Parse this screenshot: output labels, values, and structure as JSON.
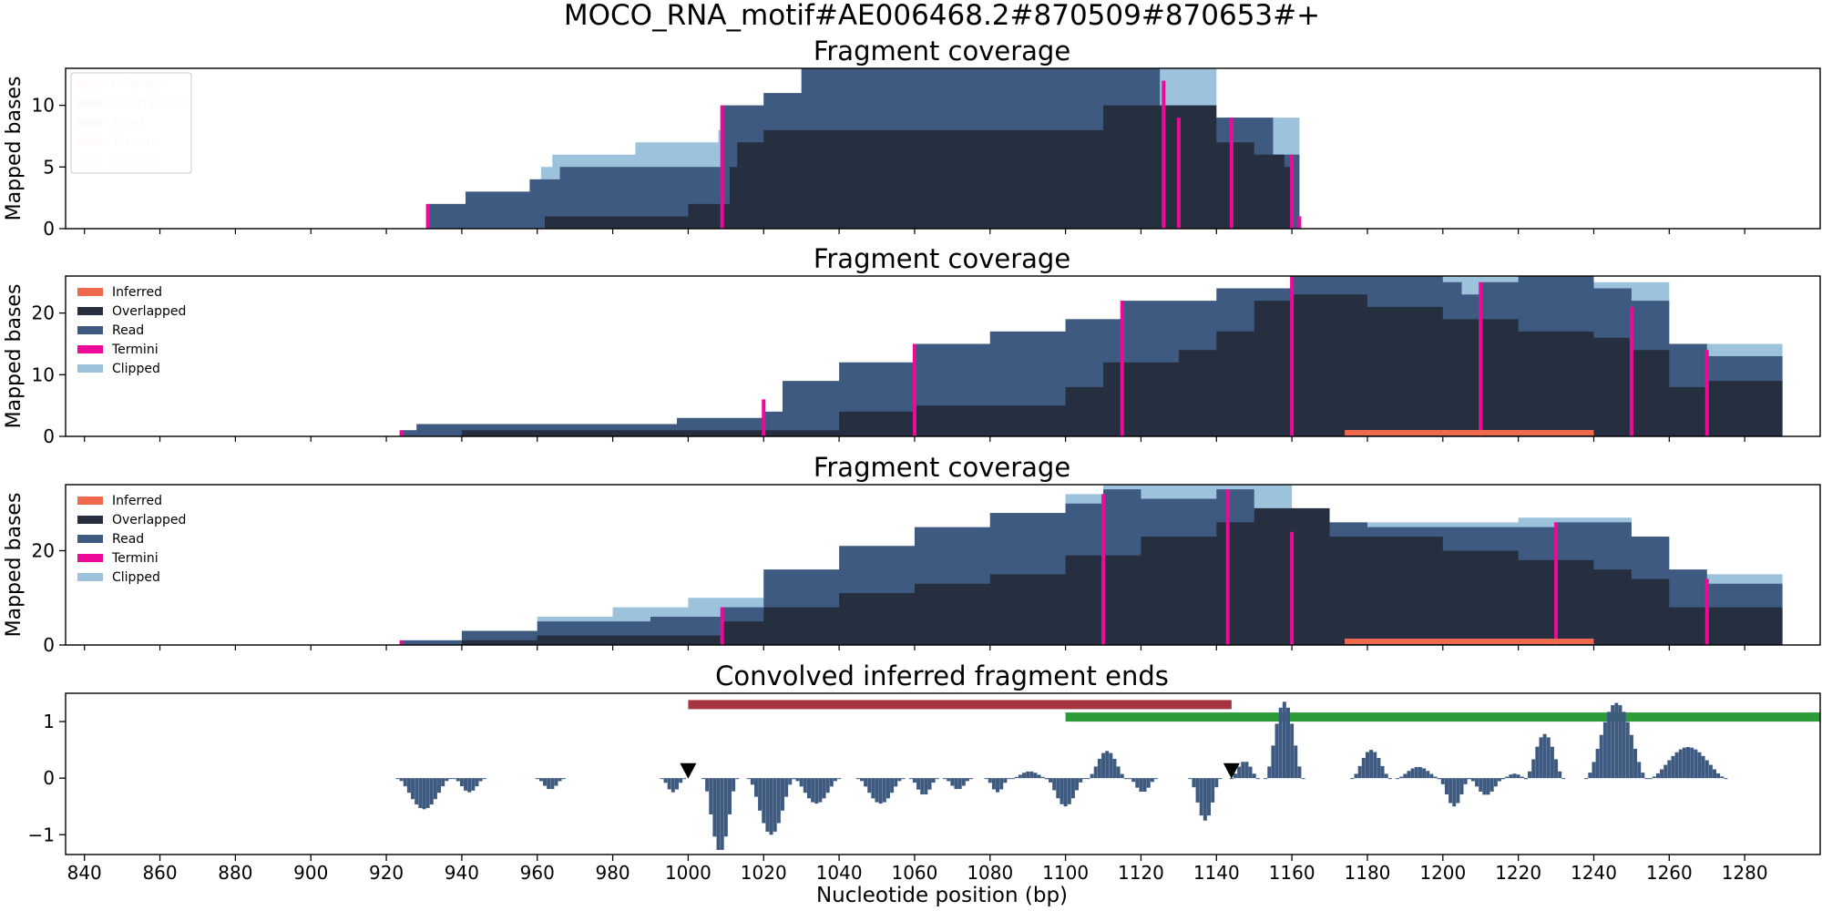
{
  "suptitle": "MOCO_RNA_motif#AE006468.2#870509#870653#+",
  "colors": {
    "inferred": "#ef6a4c",
    "overlapped": "#262f40",
    "read": "#3e5a80",
    "termini": "#ee0a98",
    "clipped": "#9cc2dc",
    "red_interval": "#a4343f",
    "green_interval": "#2e9b3a",
    "ends": "#3e5a80"
  },
  "chart_data": [
    {
      "type": "area",
      "title": "Fragment coverage",
      "ylabel": "Mapped bases",
      "xlim": [
        835,
        1300
      ],
      "ylim": [
        0,
        13
      ],
      "yticks": [
        0,
        5,
        10
      ],
      "legend": {
        "placement": "top-left",
        "entries": [
          "Inferred",
          "Overlapped",
          "Read",
          "Termini",
          "Clipped"
        ]
      },
      "series": [
        {
          "name": "Clipped",
          "x": [
            931,
            941,
            958,
            961,
            964,
            986,
            1008,
            1020,
            1080,
            1120,
            1140,
            1162
          ],
          "values": [
            2,
            3,
            4,
            5,
            6,
            7,
            8,
            11,
            13,
            13,
            9,
            0
          ]
        },
        {
          "name": "Read",
          "x": [
            931,
            941,
            958,
            961,
            966,
            986,
            1006,
            1009,
            1020,
            1030,
            1050,
            1100,
            1125,
            1144,
            1155,
            1162
          ],
          "values": [
            2,
            3,
            4,
            4,
            5,
            5,
            5,
            10,
            11,
            13,
            13,
            13,
            9,
            9,
            6,
            0
          ]
        },
        {
          "name": "Overlapped",
          "x": [
            931,
            958,
            962,
            1000,
            1009,
            1011,
            1013,
            1020,
            1100,
            1110,
            1140,
            1150,
            1158,
            1160
          ],
          "values": [
            0,
            0,
            1,
            2,
            2,
            5,
            7,
            8,
            8,
            10,
            7,
            6,
            5,
            0
          ]
        },
        {
          "name": "Termini",
          "x": [
            931,
            1009,
            1126,
            1130,
            1144,
            1160,
            1162
          ],
          "values": [
            2,
            10,
            12,
            9,
            9,
            6,
            1
          ]
        }
      ]
    },
    {
      "type": "area",
      "title": "Fragment coverage",
      "ylabel": "Mapped bases",
      "xlim": [
        835,
        1300
      ],
      "ylim": [
        0,
        26
      ],
      "yticks": [
        0,
        10,
        20
      ],
      "legend": {
        "placement": "top-left",
        "entries": [
          "Inferred",
          "Overlapped",
          "Read",
          "Termini",
          "Clipped"
        ]
      },
      "series": [
        {
          "name": "Clipped",
          "x": [
            924,
            1020,
            1060,
            1080,
            1100,
            1140,
            1160,
            1200,
            1240,
            1260,
            1290
          ],
          "values": [
            1,
            4,
            15,
            17,
            19,
            23,
            26,
            26,
            25,
            15,
            13
          ]
        },
        {
          "name": "Read",
          "x": [
            924,
            928,
            940,
            997,
            1020,
            1025,
            1040,
            1060,
            1080,
            1100,
            1115,
            1140,
            1160,
            1180,
            1200,
            1205,
            1210,
            1220,
            1240,
            1250,
            1260,
            1270,
            1290
          ],
          "values": [
            1,
            2,
            2,
            3,
            4,
            9,
            12,
            15,
            17,
            19,
            22,
            24,
            26,
            26,
            25,
            23,
            25,
            26,
            24,
            22,
            15,
            13,
            13
          ]
        },
        {
          "name": "Overlapped",
          "x": [
            924,
            940,
            1020,
            1040,
            1060,
            1080,
            1100,
            1110,
            1130,
            1140,
            1150,
            1160,
            1180,
            1200,
            1220,
            1240,
            1250,
            1260,
            1270,
            1290
          ],
          "values": [
            0,
            1,
            1,
            4,
            5,
            5,
            8,
            12,
            14,
            17,
            22,
            23,
            21,
            19,
            17,
            16,
            14,
            8,
            9,
            8
          ]
        },
        {
          "name": "Termini",
          "x": [
            924,
            1020,
            1060,
            1115,
            1160,
            1210,
            1250,
            1270
          ],
          "values": [
            1,
            6,
            15,
            22,
            26,
            25,
            21,
            14
          ]
        },
        {
          "name": "Inferred",
          "x": [
            1174,
            1240
          ],
          "values": [
            1,
            1
          ]
        }
      ]
    },
    {
      "type": "area",
      "title": "Fragment coverage",
      "ylabel": "Mapped bases",
      "xlim": [
        835,
        1300
      ],
      "ylim": [
        0,
        34
      ],
      "yticks": [
        0,
        20
      ],
      "legend": {
        "placement": "top-left",
        "entries": [
          "Inferred",
          "Overlapped",
          "Read",
          "Termini",
          "Clipped"
        ]
      },
      "series": [
        {
          "name": "Clipped",
          "x": [
            924,
            960,
            980,
            1000,
            1020,
            1060,
            1080,
            1100,
            1110,
            1140,
            1160,
            1220,
            1250,
            1260,
            1290
          ],
          "values": [
            1,
            6,
            8,
            10,
            15,
            22,
            28,
            32,
            34,
            34,
            26,
            27,
            23,
            15,
            13
          ]
        },
        {
          "name": "Read",
          "x": [
            924,
            940,
            960,
            990,
            1009,
            1020,
            1040,
            1060,
            1080,
            1100,
            1110,
            1120,
            1140,
            1150,
            1160,
            1180,
            1210,
            1230,
            1250,
            1260,
            1270,
            1290
          ],
          "values": [
            1,
            3,
            5,
            6,
            8,
            16,
            21,
            25,
            28,
            30,
            33,
            31,
            33,
            28,
            26,
            25,
            25,
            26,
            23,
            16,
            13,
            13
          ]
        },
        {
          "name": "Overlapped",
          "x": [
            924,
            940,
            960,
            1009,
            1020,
            1040,
            1060,
            1080,
            1100,
            1120,
            1140,
            1150,
            1170,
            1200,
            1220,
            1240,
            1250,
            1260,
            1290
          ],
          "values": [
            0,
            1,
            2,
            5,
            8,
            11,
            13,
            15,
            19,
            23,
            26,
            29,
            23,
            20,
            18,
            16,
            14,
            8,
            8
          ]
        },
        {
          "name": "Termini",
          "x": [
            924,
            1009,
            1110,
            1143,
            1160,
            1230,
            1270
          ],
          "values": [
            1,
            8,
            32,
            33,
            24,
            26,
            14
          ]
        },
        {
          "name": "Inferred",
          "x": [
            1174,
            1240
          ],
          "values": [
            1,
            1
          ]
        }
      ]
    },
    {
      "type": "bar",
      "title": "Convolved inferred fragment ends",
      "xlabel": "Nucleotide position (bp)",
      "ylabel": "",
      "xlim": [
        835,
        1300
      ],
      "ylim": [
        -1.35,
        1.5
      ],
      "yticks": [
        -1,
        0,
        1
      ],
      "xticks": [
        840,
        860,
        880,
        900,
        920,
        940,
        960,
        980,
        1000,
        1020,
        1040,
        1060,
        1080,
        1100,
        1120,
        1140,
        1160,
        1180,
        1200,
        1220,
        1240,
        1260,
        1280
      ],
      "intervals": [
        {
          "x0": 1000,
          "x1": 1144,
          "y": 1.3,
          "color": "red_interval"
        },
        {
          "x0": 1100,
          "x1": 1300,
          "y": 1.08,
          "color": "green_interval"
        }
      ],
      "markers": [
        {
          "x": 1000,
          "y": 0.12
        },
        {
          "x": 1144,
          "y": 0.12
        }
      ],
      "bumps": [
        [
          923,
          937,
          -0.55
        ],
        [
          938,
          946,
          -0.25
        ],
        [
          960,
          967,
          -0.2
        ],
        [
          993,
          999,
          -0.25
        ],
        [
          1004,
          1013,
          -1.3
        ],
        [
          1016,
          1028,
          -1.0
        ],
        [
          1028,
          1040,
          -0.45
        ],
        [
          1045,
          1057,
          -0.45
        ],
        [
          1059,
          1066,
          -0.3
        ],
        [
          1068,
          1075,
          -0.2
        ],
        [
          1079,
          1085,
          -0.25
        ],
        [
          1086,
          1095,
          0.12
        ],
        [
          1095,
          1105,
          -0.5
        ],
        [
          1106,
          1116,
          0.48
        ],
        [
          1117,
          1124,
          -0.25
        ],
        [
          1133,
          1141,
          -0.75
        ],
        [
          1144,
          1151,
          0.3
        ],
        [
          1153,
          1163,
          1.35
        ],
        [
          1176,
          1186,
          0.5
        ],
        [
          1188,
          1199,
          0.2
        ],
        [
          1199,
          1207,
          -0.5
        ],
        [
          1207,
          1216,
          -0.3
        ],
        [
          1216,
          1222,
          0.08
        ],
        [
          1222,
          1232,
          0.78
        ],
        [
          1238,
          1254,
          1.33
        ],
        [
          1255,
          1275,
          0.55
        ]
      ]
    }
  ]
}
